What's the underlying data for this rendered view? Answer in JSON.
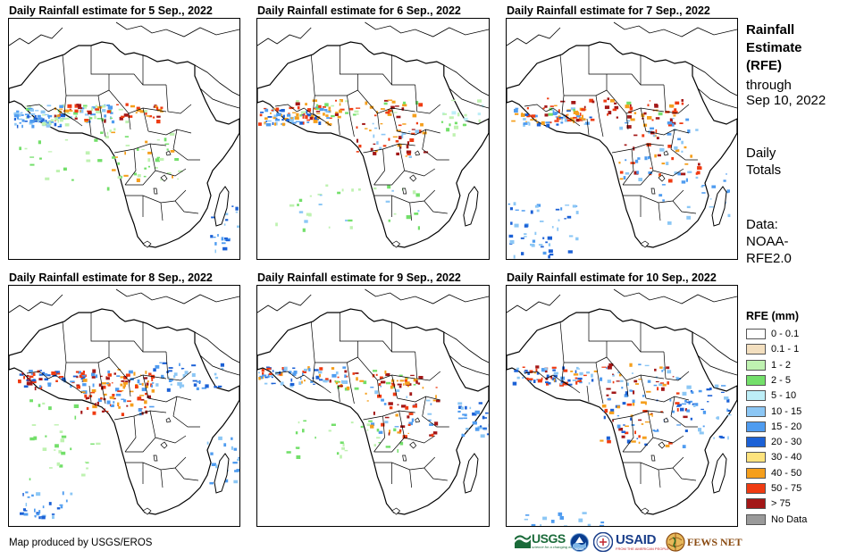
{
  "panels": [
    {
      "title": "Daily Rainfall estimate for 5 Sep., 2022"
    },
    {
      "title": "Daily Rainfall estimate for 6 Sep., 2022"
    },
    {
      "title": "Daily Rainfall estimate for 7 Sep., 2022"
    },
    {
      "title": "Daily Rainfall estimate for 8 Sep., 2022"
    },
    {
      "title": "Daily Rainfall estimate for 9 Sep., 2022"
    },
    {
      "title": "Daily Rainfall estimate for 10 Sep., 2022"
    }
  ],
  "side": {
    "title_lines": [
      "Rainfall",
      "Estimate",
      "(RFE)"
    ],
    "through": "through",
    "date": "Sep 10, 2022",
    "daily": "Daily",
    "totals": "Totals",
    "data_label": "Data:",
    "source1": "NOAA-",
    "source2": "RFE2.0"
  },
  "legend": {
    "title": "RFE (mm)",
    "items": [
      {
        "label": "0 - 0.1",
        "color": "#ffffff"
      },
      {
        "label": "0.1 - 1",
        "color": "#f3dfbf"
      },
      {
        "label": "1 - 2",
        "color": "#bff2b1"
      },
      {
        "label": "2 - 5",
        "color": "#73df6a"
      },
      {
        "label": "5 - 10",
        "color": "#bdeef7"
      },
      {
        "label": "10 - 15",
        "color": "#8cc7f5"
      },
      {
        "label": "15 - 20",
        "color": "#4f9cf0"
      },
      {
        "label": "20 - 30",
        "color": "#1c61d6"
      },
      {
        "label": "30 - 40",
        "color": "#fde37d"
      },
      {
        "label": "40 - 50",
        "color": "#f59f1c"
      },
      {
        "label": "50 - 75",
        "color": "#ef3b12"
      },
      {
        "label": "> 75",
        "color": "#a31717"
      },
      {
        "label": "No Data",
        "color": "#9a9a9a"
      }
    ]
  },
  "credit": "Map produced by USGS/EROS",
  "logos": {
    "usgs": "USGS",
    "usgs_tagline": "science for a changing world",
    "noaa": "NOAA",
    "usaid": "USAID",
    "usaid_tagline": "FROM THE AMERICAN PEOPLE",
    "fews": "FEWS NET"
  }
}
